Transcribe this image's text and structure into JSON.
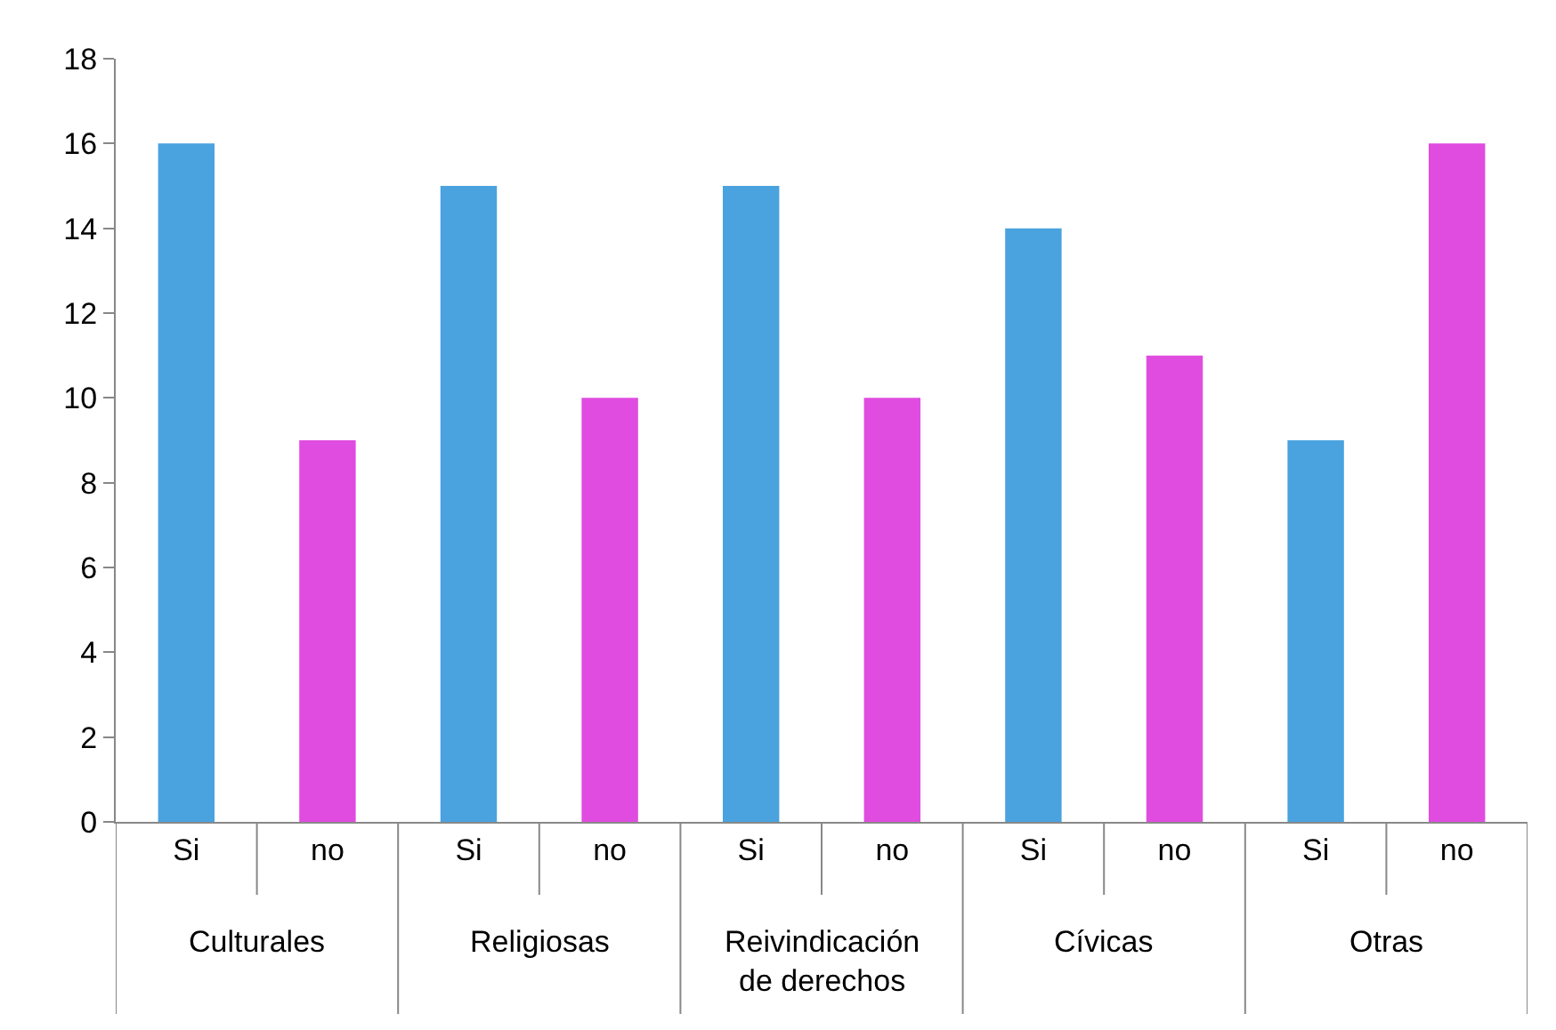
{
  "chart_data": {
    "type": "bar",
    "categories": [
      "Culturales",
      "Religiosas",
      "Reivindicación de derechos",
      "Cívicas",
      "Otras"
    ],
    "series": [
      {
        "name": "Si",
        "color": "#4aa3df",
        "values": [
          16,
          15,
          15,
          14,
          9
        ]
      },
      {
        "name": "no",
        "color": "#e04ce0",
        "values": [
          9,
          10,
          10,
          11,
          16
        ]
      }
    ],
    "ylim": [
      0,
      18
    ],
    "yticks": [
      0,
      2,
      4,
      6,
      8,
      10,
      12,
      14,
      16,
      18
    ],
    "grid": false
  }
}
